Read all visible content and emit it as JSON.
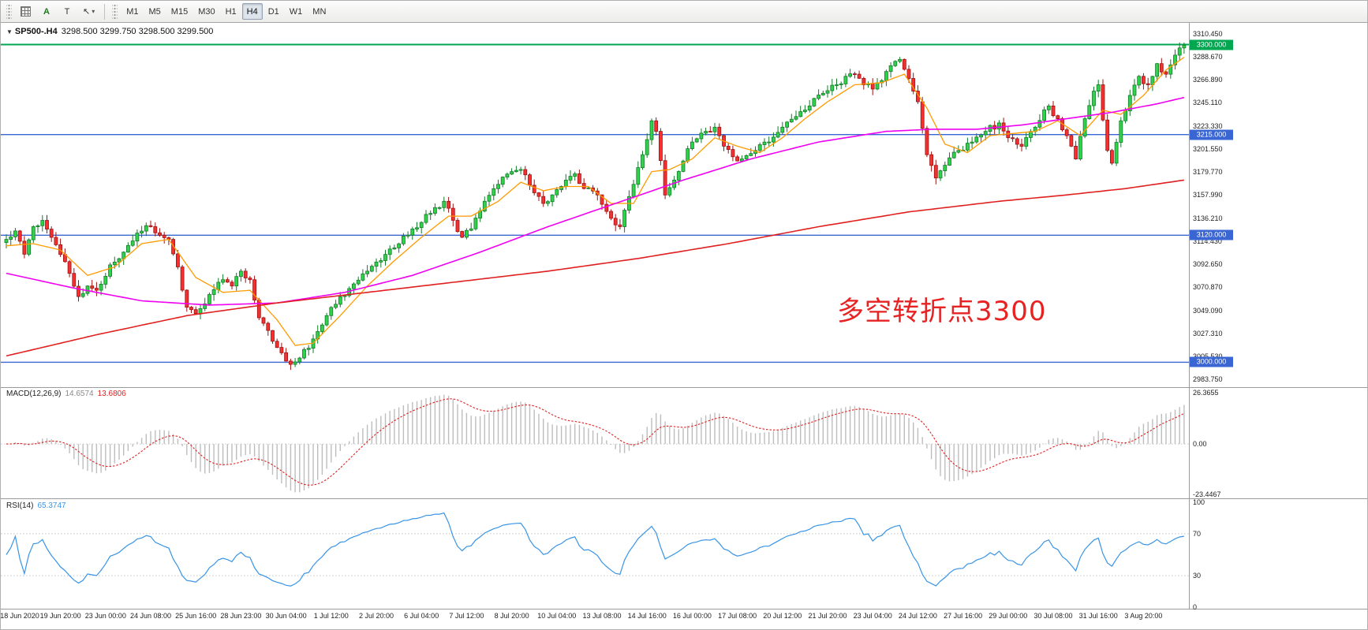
{
  "toolbar": {
    "a_button": "A",
    "t_button": "T",
    "cursor_glyph": "↖",
    "caret": "▾",
    "timeframes": [
      "M1",
      "M5",
      "M15",
      "M30",
      "H1",
      "H4",
      "D1",
      "W1",
      "MN"
    ],
    "active_timeframe": "H4"
  },
  "chart_data": {
    "type": "candlestick",
    "symbol": "SP500-",
    "timeframe": "H4",
    "title": {
      "marker": "▼",
      "symbol": "SP500-.H4",
      "ohlc": "3298.500 3299.750 3298.500 3299.500"
    },
    "current_ohlc": {
      "open": "3298.500",
      "high": "3299.750",
      "low": "3298.500",
      "close": "3299.500"
    },
    "bars": 262,
    "wiggle_amp": 3.2,
    "close_keypoints": [
      [
        0,
        3116
      ],
      [
        2,
        3124
      ],
      [
        4,
        3102
      ],
      [
        6,
        3128
      ],
      [
        8,
        3134
      ],
      [
        10,
        3118
      ],
      [
        13,
        3095
      ],
      [
        16,
        3062
      ],
      [
        18,
        3072
      ],
      [
        20,
        3068
      ],
      [
        23,
        3092
      ],
      [
        26,
        3104
      ],
      [
        29,
        3122
      ],
      [
        32,
        3128
      ],
      [
        34,
        3120
      ],
      [
        36,
        3116
      ],
      [
        38,
        3090
      ],
      [
        40,
        3052
      ],
      [
        42,
        3046
      ],
      [
        45,
        3064
      ],
      [
        48,
        3078
      ],
      [
        50,
        3072
      ],
      [
        52,
        3086
      ],
      [
        54,
        3078
      ],
      [
        56,
        3042
      ],
      [
        58,
        3030
      ],
      [
        60,
        3014
      ],
      [
        63,
        2998
      ],
      [
        65,
        3004
      ],
      [
        68,
        3022
      ],
      [
        71,
        3044
      ],
      [
        74,
        3062
      ],
      [
        77,
        3074
      ],
      [
        80,
        3086
      ],
      [
        83,
        3096
      ],
      [
        86,
        3108
      ],
      [
        89,
        3120
      ],
      [
        92,
        3132
      ],
      [
        95,
        3146
      ],
      [
        97,
        3152
      ],
      [
        99,
        3134
      ],
      [
        101,
        3118
      ],
      [
        103,
        3126
      ],
      [
        106,
        3152
      ],
      [
        109,
        3168
      ],
      [
        112,
        3180
      ],
      [
        114,
        3182
      ],
      [
        117,
        3160
      ],
      [
        119,
        3150
      ],
      [
        121,
        3158
      ],
      [
        124,
        3172
      ],
      [
        126,
        3178
      ],
      [
        128,
        3164
      ],
      [
        131,
        3158
      ],
      [
        134,
        3136
      ],
      [
        136,
        3128
      ],
      [
        139,
        3168
      ],
      [
        141,
        3196
      ],
      [
        143,
        3228
      ],
      [
        144,
        3218
      ],
      [
        146,
        3158
      ],
      [
        148,
        3172
      ],
      [
        150,
        3190
      ],
      [
        152,
        3208
      ],
      [
        155,
        3218
      ],
      [
        157,
        3222
      ],
      [
        159,
        3204
      ],
      [
        161,
        3194
      ],
      [
        163,
        3192
      ],
      [
        166,
        3200
      ],
      [
        169,
        3208
      ],
      [
        172,
        3222
      ],
      [
        175,
        3232
      ],
      [
        178,
        3242
      ],
      [
        181,
        3254
      ],
      [
        184,
        3262
      ],
      [
        186,
        3270
      ],
      [
        188,
        3272
      ],
      [
        190,
        3262
      ],
      [
        192,
        3258
      ],
      [
        194,
        3266
      ],
      [
        196,
        3280
      ],
      [
        198,
        3286
      ],
      [
        200,
        3268
      ],
      [
        202,
        3246
      ],
      [
        204,
        3196
      ],
      [
        206,
        3174
      ],
      [
        208,
        3186
      ],
      [
        211,
        3200
      ],
      [
        214,
        3208
      ],
      [
        217,
        3218
      ],
      [
        220,
        3226
      ],
      [
        222,
        3212
      ],
      [
        225,
        3204
      ],
      [
        228,
        3222
      ],
      [
        231,
        3242
      ],
      [
        233,
        3230
      ],
      [
        235,
        3214
      ],
      [
        237,
        3192
      ],
      [
        239,
        3230
      ],
      [
        241,
        3256
      ],
      [
        242,
        3262
      ],
      [
        244,
        3200
      ],
      [
        245,
        3188
      ],
      [
        247,
        3228
      ],
      [
        249,
        3252
      ],
      [
        251,
        3270
      ],
      [
        253,
        3262
      ],
      [
        255,
        3282
      ],
      [
        257,
        3272
      ],
      [
        259,
        3290
      ],
      [
        261,
        3299.5
      ]
    ],
    "y_axis": {
      "max": 3316.0,
      "min": 2978.0,
      "labels": [
        "3310.450",
        "3288.670",
        "3266.890",
        "3245.110",
        "3223.330",
        "3201.550",
        "3179.770",
        "3157.990",
        "3136.210",
        "3114.430",
        "3092.650",
        "3070.870",
        "3049.090",
        "3027.310",
        "3005.530",
        "2983.750"
      ]
    },
    "h_lines": [
      {
        "price": 3300,
        "label": "3300.000",
        "color": "#00a650",
        "width": 2
      },
      {
        "price": 3215,
        "label": "3215.000",
        "color": "#3a66d4",
        "width": 1.4
      },
      {
        "price": 3120,
        "label": "3120.000",
        "color": "#3a66d4",
        "width": 1.4
      },
      {
        "price": 3000,
        "label": "3000.000",
        "color": "#3a66d4",
        "width": 1.4
      }
    ],
    "moving_averages": [
      {
        "name": "ma-fast",
        "color": "#ff9a00",
        "width": 1.3,
        "keypoints": [
          [
            0,
            3110
          ],
          [
            6,
            3112
          ],
          [
            12,
            3106
          ],
          [
            18,
            3082
          ],
          [
            24,
            3090
          ],
          [
            30,
            3112
          ],
          [
            36,
            3116
          ],
          [
            42,
            3080
          ],
          [
            48,
            3066
          ],
          [
            54,
            3068
          ],
          [
            60,
            3040
          ],
          [
            64,
            3016
          ],
          [
            68,
            3018
          ],
          [
            74,
            3044
          ],
          [
            80,
            3072
          ],
          [
            86,
            3096
          ],
          [
            92,
            3118
          ],
          [
            98,
            3138
          ],
          [
            103,
            3138
          ],
          [
            109,
            3152
          ],
          [
            114,
            3170
          ],
          [
            119,
            3162
          ],
          [
            124,
            3166
          ],
          [
            129,
            3166
          ],
          [
            134,
            3150
          ],
          [
            139,
            3150
          ],
          [
            143,
            3180
          ],
          [
            147,
            3182
          ],
          [
            152,
            3192
          ],
          [
            157,
            3212
          ],
          [
            162,
            3204
          ],
          [
            167,
            3198
          ],
          [
            172,
            3212
          ],
          [
            177,
            3230
          ],
          [
            182,
            3246
          ],
          [
            188,
            3262
          ],
          [
            194,
            3264
          ],
          [
            199,
            3272
          ],
          [
            204,
            3240
          ],
          [
            208,
            3206
          ],
          [
            213,
            3198
          ],
          [
            218,
            3214
          ],
          [
            223,
            3216
          ],
          [
            228,
            3218
          ],
          [
            233,
            3228
          ],
          [
            238,
            3214
          ],
          [
            243,
            3238
          ],
          [
            247,
            3234
          ],
          [
            252,
            3252
          ],
          [
            257,
            3276
          ],
          [
            261,
            3288
          ]
        ]
      },
      {
        "name": "ma-medium",
        "color": "#f000f0",
        "width": 1.6,
        "keypoints": [
          [
            0,
            3084
          ],
          [
            15,
            3070
          ],
          [
            30,
            3058
          ],
          [
            45,
            3054
          ],
          [
            60,
            3056
          ],
          [
            75,
            3066
          ],
          [
            90,
            3082
          ],
          [
            105,
            3104
          ],
          [
            120,
            3128
          ],
          [
            135,
            3150
          ],
          [
            150,
            3172
          ],
          [
            165,
            3192
          ],
          [
            180,
            3208
          ],
          [
            195,
            3218
          ],
          [
            205,
            3220
          ],
          [
            215,
            3220
          ],
          [
            225,
            3224
          ],
          [
            235,
            3230
          ],
          [
            245,
            3236
          ],
          [
            255,
            3244
          ],
          [
            261,
            3250
          ]
        ]
      },
      {
        "name": "ma-slow",
        "color": "#e02020",
        "width": 1.6,
        "keypoints": [
          [
            0,
            3006
          ],
          [
            20,
            3026
          ],
          [
            40,
            3044
          ],
          [
            60,
            3056
          ],
          [
            80,
            3066
          ],
          [
            100,
            3076
          ],
          [
            120,
            3086
          ],
          [
            140,
            3098
          ],
          [
            160,
            3112
          ],
          [
            180,
            3128
          ],
          [
            200,
            3142
          ],
          [
            220,
            3152
          ],
          [
            235,
            3158
          ],
          [
            248,
            3164
          ],
          [
            261,
            3172
          ]
        ]
      }
    ],
    "x_axis": {
      "first_bar": 2,
      "step": 10,
      "labels": [
        "18 Jun 2020",
        "19 Jun 20:00",
        "23 Jun 00:00",
        "24 Jun 08:00",
        "25 Jun 16:00",
        "28 Jun 23:00",
        "30 Jun 04:00",
        "1 Jul 12:00",
        "2 Jul 20:00",
        "6 Jul 04:00",
        "7 Jul 12:00",
        "8 Jul 20:00",
        "10 Jul 04:00",
        "13 Jul 08:00",
        "14 Jul 16:00",
        "16 Jul 00:00",
        "17 Jul 08:00",
        "20 Jul 12:00",
        "21 Jul 20:00",
        "23 Jul 04:00",
        "24 Jul 12:00",
        "27 Jul 16:00",
        "29 Jul 00:00",
        "30 Jul 08:00",
        "31 Jul 16:00",
        "3 Aug 20:00"
      ]
    },
    "annotation": {
      "text": "多空转折点3300",
      "color": "#e62222"
    },
    "macd": {
      "label": "MACD(12,26,9)",
      "fast": 12,
      "slow": 26,
      "signal": 9,
      "value_main": "14.6574",
      "value_signal": "13.6806",
      "axis_labels": [
        "26.3655",
        "0.00",
        "-23.4467"
      ],
      "hist_color": "#bdbdbd",
      "signal_color": "#e02020"
    },
    "rsi": {
      "label": "RSI(14)",
      "period": 14,
      "value": "65.3747",
      "axis_labels": [
        "100",
        "70",
        "30",
        "0"
      ],
      "levels": [
        70,
        30
      ],
      "color": "#3994e6"
    },
    "candle_colors": {
      "up_fill": "#2fd24a",
      "up_border": "#157a2a",
      "down_fill": "#f53030",
      "down_border": "#9c1212"
    }
  }
}
